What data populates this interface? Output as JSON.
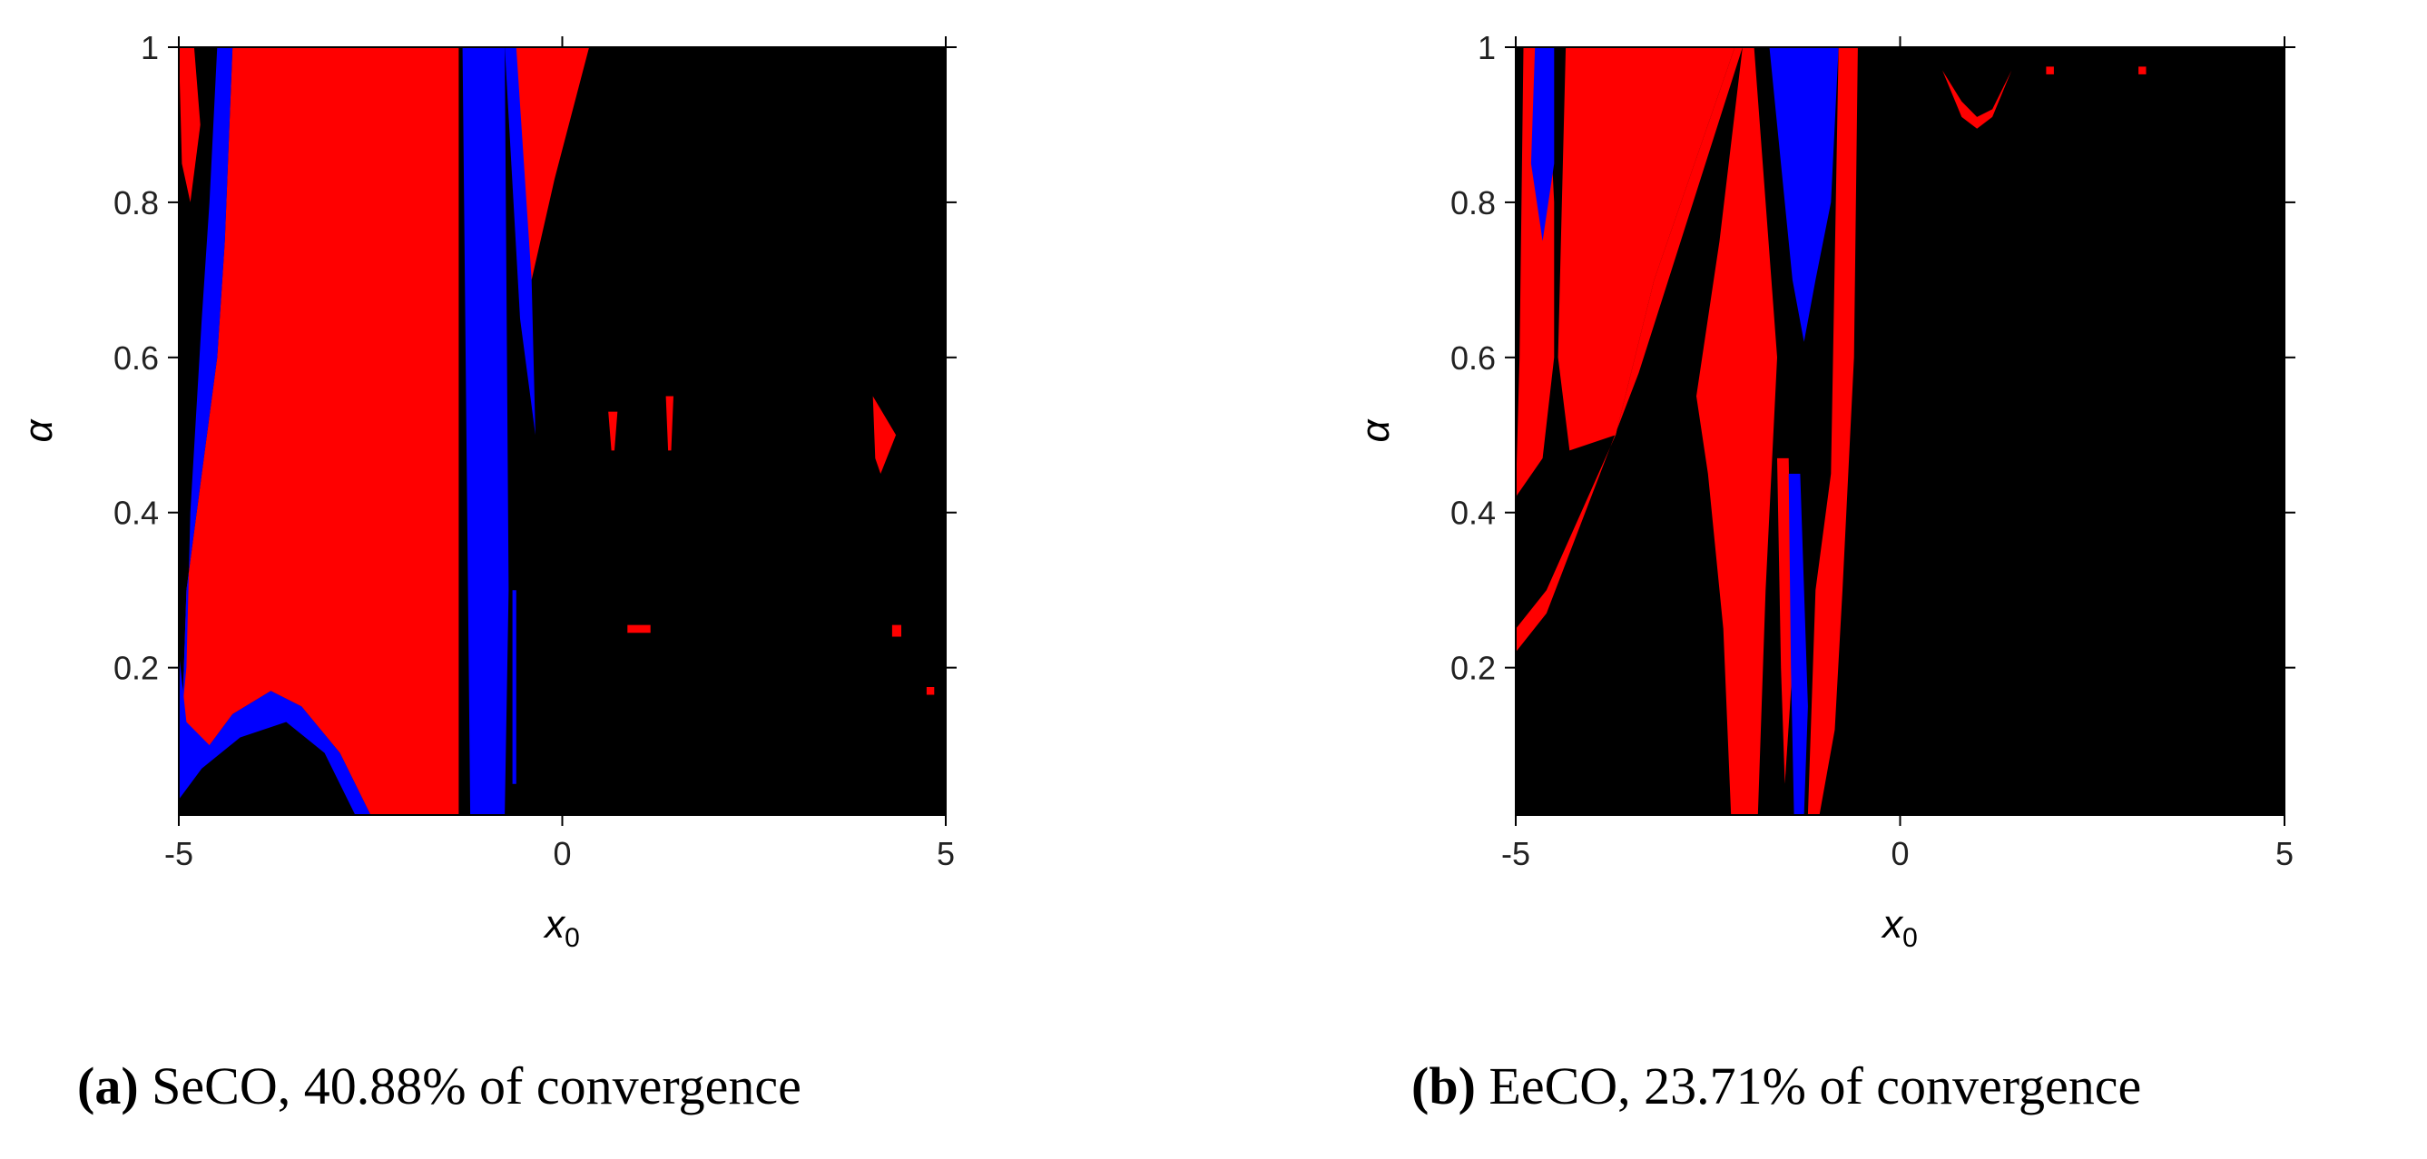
{
  "chart_data": [
    {
      "type": "heatmap",
      "panel_label": "(a)",
      "caption": "SeCO, 40.88% of convergence",
      "xlabel": "x0",
      "ylabel": "α",
      "xlim": [
        -5,
        5
      ],
      "ylim": [
        0.01,
        1
      ],
      "xticks": [
        "-5",
        "0",
        "5"
      ],
      "yticks": [
        "0.2",
        "0.4",
        "0.6",
        "0.8",
        "1"
      ],
      "colors": {
        "background": "#000000",
        "red": "#ff0000",
        "blue": "#0000ff"
      },
      "regions": {
        "red": [
          [
            [
              -4.3,
              1
            ],
            [
              -1.35,
              1
            ],
            [
              -1.35,
              0.01
            ],
            [
              -2.5,
              0.01
            ],
            [
              -2.9,
              0.09
            ],
            [
              -3.4,
              0.15
            ],
            [
              -3.8,
              0.17
            ],
            [
              -4.3,
              0.14
            ],
            [
              -4.6,
              0.1
            ],
            [
              -4.85,
              0.05
            ],
            [
              -4.95,
              0.15
            ],
            [
              -4.9,
              0.3
            ],
            [
              -4.7,
              0.45
            ],
            [
              -4.5,
              0.6
            ],
            [
              -4.4,
              0.75
            ]
          ],
          [
            [
              -5,
              1
            ],
            [
              -4.8,
              1
            ],
            [
              -4.72,
              0.9
            ],
            [
              -4.85,
              0.8
            ],
            [
              -4.96,
              0.85
            ]
          ],
          [
            [
              -3.95,
              1
            ],
            [
              -3.85,
              1
            ],
            [
              -3.9,
              0.96
            ]
          ],
          [
            [
              -0.65,
              1
            ],
            [
              0.35,
              1
            ],
            [
              -0.1,
              0.83
            ],
            [
              -0.4,
              0.7
            ],
            [
              -0.55,
              0.85
            ]
          ],
          [
            [
              0.6,
              0.53
            ],
            [
              0.72,
              0.53
            ],
            [
              0.68,
              0.48
            ],
            [
              0.64,
              0.48
            ]
          ],
          [
            [
              1.35,
              0.55
            ],
            [
              1.45,
              0.55
            ],
            [
              1.42,
              0.48
            ],
            [
              1.38,
              0.48
            ]
          ],
          [
            [
              4.05,
              0.55
            ],
            [
              4.35,
              0.5
            ],
            [
              4.15,
              0.45
            ],
            [
              4.08,
              0.47
            ]
          ],
          [
            [
              0.85,
              0.255
            ],
            [
              1.15,
              0.255
            ],
            [
              1.15,
              0.245
            ],
            [
              0.85,
              0.245
            ]
          ],
          [
            [
              4.3,
              0.255
            ],
            [
              4.42,
              0.255
            ],
            [
              4.42,
              0.24
            ],
            [
              4.3,
              0.24
            ]
          ],
          [
            [
              4.75,
              0.175
            ],
            [
              4.85,
              0.175
            ],
            [
              4.85,
              0.165
            ],
            [
              4.75,
              0.165
            ]
          ]
        ],
        "blue": [
          [
            [
              -4.5,
              1
            ],
            [
              -4.3,
              1
            ],
            [
              -4.4,
              0.75
            ],
            [
              -4.5,
              0.6
            ],
            [
              -4.7,
              0.45
            ],
            [
              -4.9,
              0.3
            ],
            [
              -4.95,
              0.15
            ],
            [
              -4.9,
              0.2
            ],
            [
              -4.85,
              0.4
            ],
            [
              -4.7,
              0.65
            ],
            [
              -4.6,
              0.8
            ]
          ],
          [
            [
              -5,
              0.22
            ],
            [
              -4.9,
              0.13
            ],
            [
              -4.6,
              0.1
            ],
            [
              -4.3,
              0.14
            ],
            [
              -3.8,
              0.17
            ],
            [
              -3.4,
              0.15
            ],
            [
              -2.9,
              0.09
            ],
            [
              -2.5,
              0.01
            ],
            [
              -2.7,
              0.01
            ],
            [
              -3.1,
              0.09
            ],
            [
              -3.6,
              0.13
            ],
            [
              -4.2,
              0.11
            ],
            [
              -4.7,
              0.07
            ],
            [
              -5,
              0.03
            ]
          ],
          [
            [
              -1.3,
              1
            ],
            [
              -0.75,
              1
            ],
            [
              -0.7,
              0.3
            ],
            [
              -0.75,
              0.01
            ],
            [
              -1.2,
              0.01
            ],
            [
              -1.25,
              0.5
            ]
          ],
          [
            [
              -0.75,
              1
            ],
            [
              -0.6,
              1
            ],
            [
              -0.4,
              0.7
            ],
            [
              -0.35,
              0.5
            ],
            [
              -0.55,
              0.65
            ]
          ],
          [
            [
              -0.65,
              0.3
            ],
            [
              -0.6,
              0.3
            ],
            [
              -0.6,
              0.05
            ],
            [
              -0.65,
              0.05
            ]
          ]
        ]
      }
    },
    {
      "type": "heatmap",
      "panel_label": "(b)",
      "caption": "EeCO, 23.71% of convergence",
      "xlabel": "x0",
      "ylabel": "α",
      "xlim": [
        -5,
        5
      ],
      "ylim": [
        0.01,
        1
      ],
      "xticks": [
        "-5",
        "0",
        "5"
      ],
      "yticks": [
        "0.2",
        "0.4",
        "0.6",
        "0.8",
        "1"
      ],
      "colors": {
        "background": "#000000",
        "red": "#ff0000",
        "blue": "#0000ff"
      },
      "regions": {
        "red": [
          [
            [
              -4.35,
              1
            ],
            [
              -2.15,
              1
            ],
            [
              -3.2,
              0.7
            ],
            [
              -3.7,
              0.5
            ],
            [
              -4.3,
              0.48
            ],
            [
              -4.45,
              0.6
            ]
          ],
          [
            [
              -5,
              0.25
            ],
            [
              -4.6,
              0.3
            ],
            [
              -3.7,
              0.5
            ],
            [
              -3.2,
              0.7
            ],
            [
              -2.15,
              1
            ],
            [
              -2.05,
              1
            ],
            [
              -3.4,
              0.58
            ],
            [
              -4.6,
              0.27
            ],
            [
              -5,
              0.22
            ]
          ],
          [
            [
              -5,
              0.42
            ],
            [
              -4.65,
              0.47
            ],
            [
              -4.5,
              0.6
            ],
            [
              -4.5,
              0.8
            ],
            [
              -4.6,
              1
            ],
            [
              -4.9,
              1
            ],
            [
              -4.95,
              0.6
            ]
          ],
          [
            [
              -2.65,
              0.55
            ],
            [
              -2.35,
              0.75
            ],
            [
              -2.05,
              1
            ],
            [
              -1.9,
              1
            ],
            [
              -1.6,
              0.6
            ],
            [
              -1.75,
              0.3
            ],
            [
              -1.85,
              0.01
            ],
            [
              -2.2,
              0.01
            ],
            [
              -2.3,
              0.25
            ],
            [
              -2.5,
              0.45
            ]
          ],
          [
            [
              -0.8,
              1
            ],
            [
              -0.55,
              1
            ],
            [
              -0.6,
              0.6
            ],
            [
              -0.75,
              0.3
            ],
            [
              -0.85,
              0.12
            ],
            [
              -1.05,
              0.01
            ],
            [
              -1.2,
              0.01
            ],
            [
              -1.1,
              0.3
            ],
            [
              -0.9,
              0.45
            ]
          ],
          [
            [
              -1.6,
              0.47
            ],
            [
              -1.45,
              0.47
            ],
            [
              -1.4,
              0.2
            ],
            [
              -1.5,
              0.05
            ],
            [
              -1.55,
              0.2
            ]
          ],
          [
            [
              0.55,
              0.97
            ],
            [
              0.8,
              0.91
            ],
            [
              1.0,
              0.895
            ],
            [
              1.2,
              0.91
            ],
            [
              1.45,
              0.97
            ],
            [
              1.2,
              0.92
            ],
            [
              1.0,
              0.91
            ],
            [
              0.8,
              0.93
            ]
          ],
          [
            [
              1.9,
              0.975
            ],
            [
              2.0,
              0.975
            ],
            [
              2.0,
              0.965
            ],
            [
              1.9,
              0.965
            ]
          ],
          [
            [
              3.1,
              0.975
            ],
            [
              3.2,
              0.975
            ],
            [
              3.2,
              0.965
            ],
            [
              3.1,
              0.965
            ]
          ]
        ],
        "blue": [
          [
            [
              -4.75,
              1
            ],
            [
              -4.5,
              1
            ],
            [
              -4.5,
              0.85
            ],
            [
              -4.65,
              0.75
            ],
            [
              -4.8,
              0.85
            ]
          ],
          [
            [
              -1.7,
              1
            ],
            [
              -0.8,
              1
            ],
            [
              -0.9,
              0.8
            ],
            [
              -1.1,
              0.7
            ],
            [
              -1.25,
              0.62
            ],
            [
              -1.4,
              0.7
            ],
            [
              -1.55,
              0.85
            ]
          ],
          [
            [
              -1.45,
              0.45
            ],
            [
              -1.3,
              0.45
            ],
            [
              -1.2,
              0.15
            ],
            [
              -1.25,
              0.01
            ],
            [
              -1.38,
              0.01
            ],
            [
              -1.42,
              0.2
            ]
          ]
        ]
      }
    }
  ]
}
